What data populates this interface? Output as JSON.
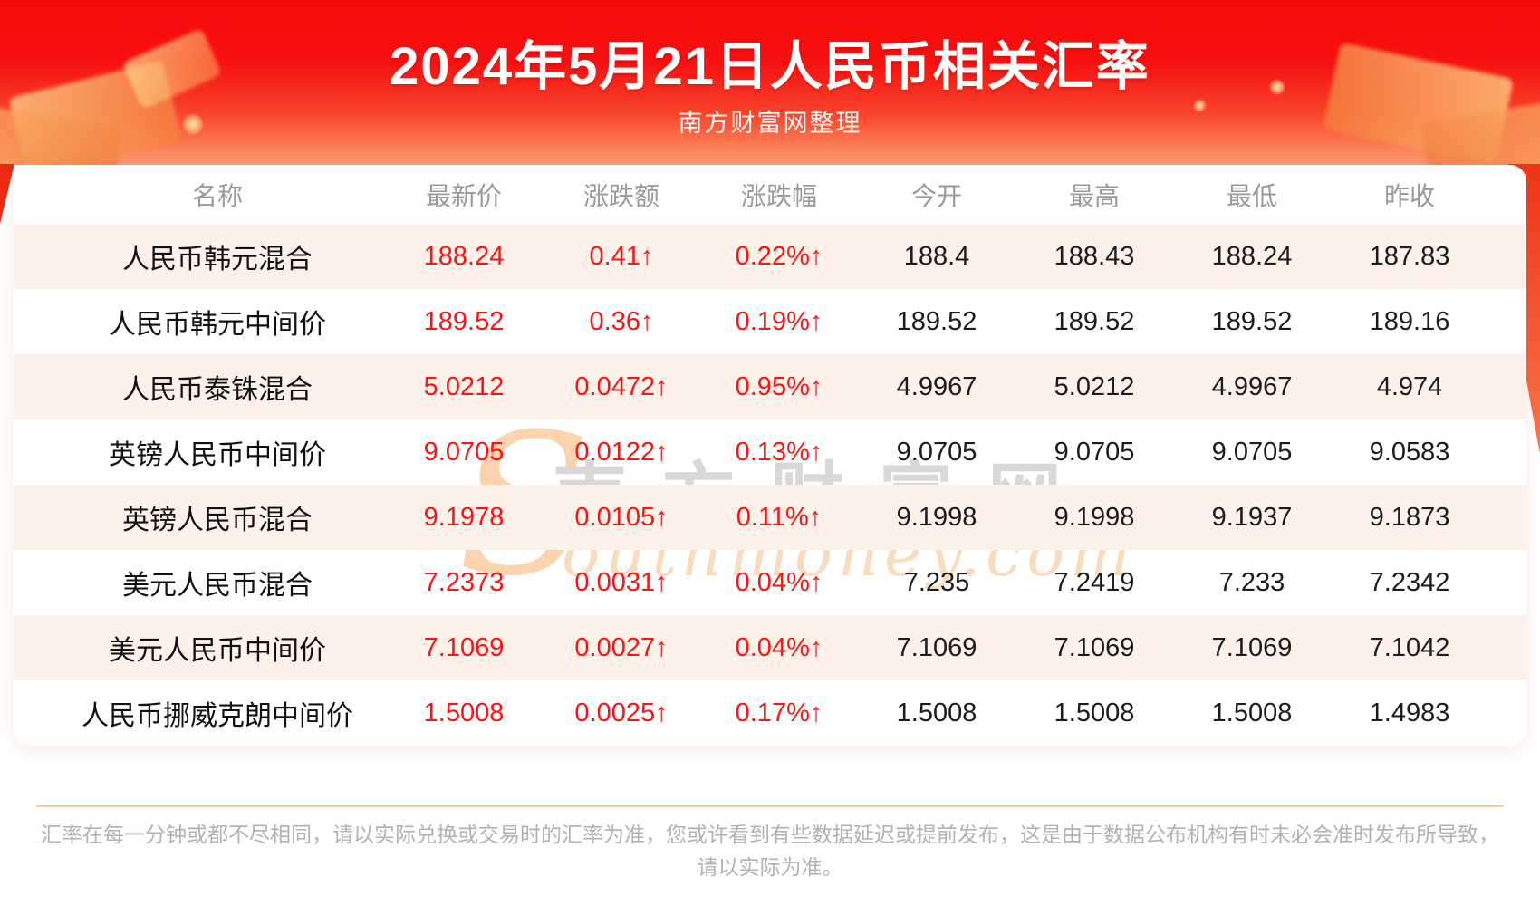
{
  "header": {
    "title": "2024年5月21日人民币相关汇率",
    "subtitle": "南方财富网整理"
  },
  "watermark": {
    "initial": "S",
    "cn": "南方财富网",
    "en": "outhmoney.com"
  },
  "footer": {
    "line1": "汇率在每一分钟或都不尽相同，请以实际兑换或交易时的汇率为准，您或许看到有些数据延迟或提前发布，这是由于数据公布机构有时未必会准时发布所导致，",
    "line2": "请以实际为准。"
  },
  "colors": {
    "banner_red_top": "#f50a0a",
    "banner_red_bottom": "#fd9c73",
    "row_alt_background": "#fdf1ea",
    "value_red": "#fa1414",
    "header_gray": "#9a9a9a",
    "text_black": "#1c1c1c",
    "footer_gray": "#b2b2b2",
    "divider_tan": "#f4d0a5"
  },
  "chart_data": {
    "type": "table",
    "title": "2024年5月21日人民币相关汇率",
    "subtitle": "南方财富网整理",
    "columns": [
      "名称",
      "最新价",
      "涨跌额",
      "涨跌幅",
      "今开",
      "最高",
      "最低",
      "昨收"
    ],
    "red_columns": [
      "最新价",
      "涨跌额",
      "涨跌幅"
    ],
    "rows": [
      {
        "name": "人民币韩元混合",
        "latest": "188.24",
        "change": "0.41↑",
        "change_pct": "0.22%↑",
        "open": "188.4",
        "high": "188.43",
        "low": "188.24",
        "prev_close": "187.83"
      },
      {
        "name": "人民币韩元中间价",
        "latest": "189.52",
        "change": "0.36↑",
        "change_pct": "0.19%↑",
        "open": "189.52",
        "high": "189.52",
        "low": "189.52",
        "prev_close": "189.16"
      },
      {
        "name": "人民币泰铢混合",
        "latest": "5.0212",
        "change": "0.0472↑",
        "change_pct": "0.95%↑",
        "open": "4.9967",
        "high": "5.0212",
        "low": "4.9967",
        "prev_close": "4.974"
      },
      {
        "name": "英镑人民币中间价",
        "latest": "9.0705",
        "change": "0.0122↑",
        "change_pct": "0.13%↑",
        "open": "9.0705",
        "high": "9.0705",
        "low": "9.0705",
        "prev_close": "9.0583"
      },
      {
        "name": "英镑人民币混合",
        "latest": "9.1978",
        "change": "0.0105↑",
        "change_pct": "0.11%↑",
        "open": "9.1998",
        "high": "9.1998",
        "low": "9.1937",
        "prev_close": "9.1873"
      },
      {
        "name": "美元人民币混合",
        "latest": "7.2373",
        "change": "0.0031↑",
        "change_pct": "0.04%↑",
        "open": "7.235",
        "high": "7.2419",
        "low": "7.233",
        "prev_close": "7.2342"
      },
      {
        "name": "美元人民币中间价",
        "latest": "7.1069",
        "change": "0.0027↑",
        "change_pct": "0.04%↑",
        "open": "7.1069",
        "high": "7.1069",
        "low": "7.1069",
        "prev_close": "7.1042"
      },
      {
        "name": "人民币挪威克朗中间价",
        "latest": "1.5008",
        "change": "0.0025↑",
        "change_pct": "0.17%↑",
        "open": "1.5008",
        "high": "1.5008",
        "low": "1.5008",
        "prev_close": "1.4983"
      }
    ]
  }
}
